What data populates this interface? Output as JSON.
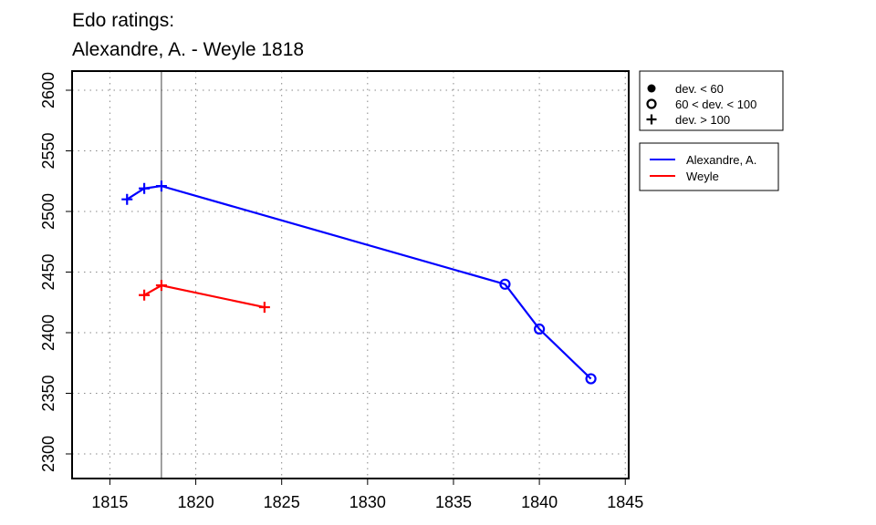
{
  "chart_data": {
    "type": "line",
    "title_line1": "Edo ratings:",
    "title_line2": "Alexandre, A. - Weyle 1818",
    "xlabel": "",
    "ylabel": "",
    "xlim": [
      1812.8,
      1845.2
    ],
    "ylim": [
      2279.7,
      2615.8
    ],
    "x_ticks": [
      1815,
      1820,
      1825,
      1830,
      1835,
      1840,
      1845
    ],
    "y_ticks": [
      2300,
      2350,
      2400,
      2450,
      2500,
      2550,
      2600
    ],
    "grid": true,
    "reference_line_x": 1818,
    "series": [
      {
        "name": "Alexandre, A.",
        "color": "#0000ff",
        "points": [
          {
            "x": 1816,
            "y": 2510,
            "marker": "plus"
          },
          {
            "x": 1817,
            "y": 2519,
            "marker": "plus"
          },
          {
            "x": 1818,
            "y": 2521,
            "marker": "plus"
          },
          {
            "x": 1838,
            "y": 2440,
            "marker": "circle-open"
          },
          {
            "x": 1840,
            "y": 2403,
            "marker": "circle-open"
          },
          {
            "x": 1843,
            "y": 2362,
            "marker": "circle-open"
          }
        ]
      },
      {
        "name": "Weyle",
        "color": "#ff0000",
        "points": [
          {
            "x": 1817,
            "y": 2431,
            "marker": "plus"
          },
          {
            "x": 1818,
            "y": 2439,
            "marker": "plus"
          },
          {
            "x": 1824,
            "y": 2421,
            "marker": "plus"
          }
        ]
      }
    ],
    "marker_legend": [
      {
        "marker": "circle-filled",
        "label": "dev. < 60"
      },
      {
        "marker": "circle-open",
        "label": "60 < dev. < 100"
      },
      {
        "marker": "plus",
        "label": "dev. > 100"
      }
    ],
    "legend_placement": "right"
  }
}
